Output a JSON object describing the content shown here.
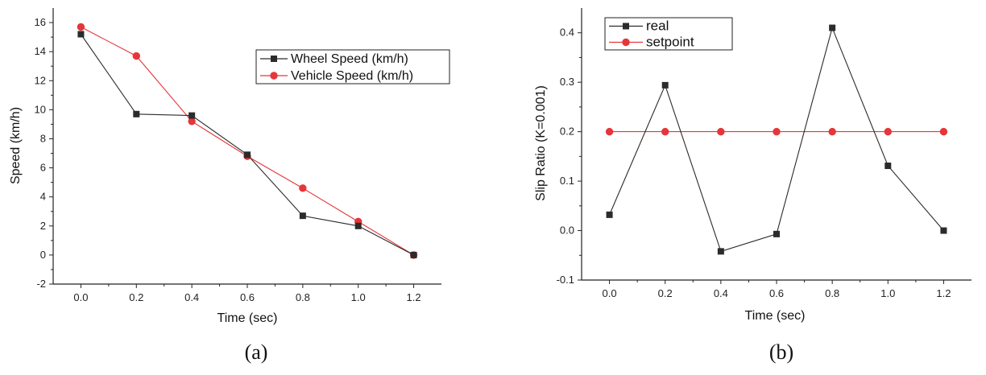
{
  "chart_data": [
    {
      "type": "line",
      "panel_label": "(a)",
      "title": "",
      "xlabel": "Time (sec)",
      "ylabel": "Speed (km/h)",
      "xlim": [
        -0.1,
        1.3
      ],
      "ylim": [
        -2,
        17
      ],
      "x_ticks": [
        "0.0",
        "0.2",
        "0.4",
        "0.6",
        "0.8",
        "1.0",
        "1.2"
      ],
      "y_ticks": [
        "-2",
        "0",
        "2",
        "4",
        "6",
        "8",
        "10",
        "12",
        "14",
        "16"
      ],
      "legend_position": "upper-right",
      "series": [
        {
          "name": "Wheel Speed (km/h)",
          "color": "#2b2b2b",
          "marker": "square",
          "x": [
            0.0,
            0.2,
            0.4,
            0.6,
            0.8,
            1.0,
            1.2
          ],
          "y": [
            15.2,
            9.7,
            9.6,
            6.9,
            2.7,
            2.0,
            0.0
          ]
        },
        {
          "name": "Vehicle Speed (km/h)",
          "color": "#e5363b",
          "marker": "circle",
          "x": [
            0.0,
            0.2,
            0.4,
            0.6,
            0.8,
            1.0,
            1.2
          ],
          "y": [
            15.7,
            13.7,
            9.2,
            6.8,
            4.6,
            2.3,
            0.0
          ]
        }
      ]
    },
    {
      "type": "line",
      "panel_label": "(b)",
      "title": "",
      "xlabel": "Time (sec)",
      "ylabel": "Slip Ratio (K=0.001)",
      "xlim": [
        -0.1,
        1.3
      ],
      "ylim": [
        -0.1,
        0.45
      ],
      "x_ticks": [
        "0.0",
        "0.2",
        "0.4",
        "0.6",
        "0.8",
        "1.0",
        "1.2"
      ],
      "y_ticks": [
        "-0.1",
        "0.0",
        "0.1",
        "0.2",
        "0.3",
        "0.4"
      ],
      "legend_position": "upper-left",
      "series": [
        {
          "name": "real",
          "color": "#2b2b2b",
          "marker": "square",
          "x": [
            0.0,
            0.2,
            0.4,
            0.6,
            0.8,
            1.0,
            1.2
          ],
          "y": [
            0.032,
            0.294,
            -0.042,
            -0.007,
            0.41,
            0.131,
            0.0
          ]
        },
        {
          "name": "setpoint",
          "color": "#e5363b",
          "marker": "circle",
          "x": [
            0.0,
            0.2,
            0.4,
            0.6,
            0.8,
            1.0,
            1.2
          ],
          "y": [
            0.2,
            0.2,
            0.2,
            0.2,
            0.2,
            0.2,
            0.2
          ]
        }
      ]
    }
  ]
}
